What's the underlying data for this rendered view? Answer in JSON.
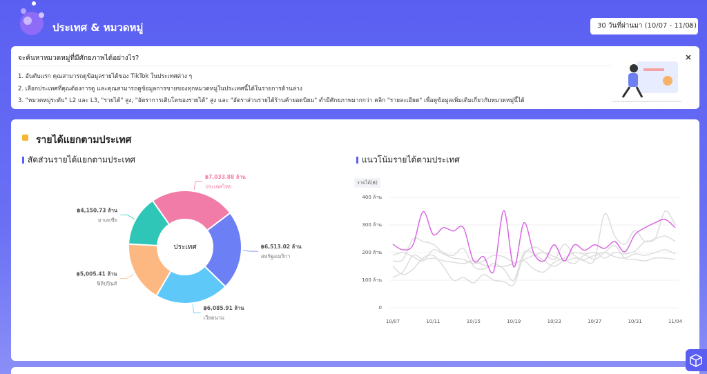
{
  "header": {
    "title": "ประเทศ & หมวดหมู่",
    "date_range": "30 วันที่ผ่านมา (10/07 - 11/05)"
  },
  "guide": {
    "question": "จะค้นหาหมวดหมู่ที่มีศักยภาพได้อย่างไร?",
    "steps": [
      "1. อันดับแรก คุณสามารถดูข้อมูลรายได้ของ TikTok ในประเทศต่าง ๆ",
      "2. เลือกประเทศที่คุณต้องการดู และคุณสามารถดูข้อมูลการขายของทุกหมวดหมู่ในประเทศนี้ได้ในรายการด้านล่าง",
      "3. \"หมวดหมู่ระดับ\" L2 และ L3, \"รายได้\" สูง, \"อัตราการเติบโตของรายได้\" สูง และ \"อัตราส่วนรายได้ร้านค้ายอดนิยม\" ต่ำมีศักยภาพมากกว่า คลิก \"รายละเอียด\" เพื่อดูข้อมูลเพิ่มเติมเกี่ยวกับหมวดหมู่นี้ได้"
    ]
  },
  "section": {
    "title": "รายได้แยกตามประเทศ"
  },
  "chart_data": [
    {
      "type": "pie",
      "title": "สัดส่วนรายได้แยกตามประเทศ",
      "center_label": "ประเทศ",
      "categories": [
        "ประเทศไทย",
        "สหรัฐอเมริกา",
        "เวียดนาม",
        "ฟิลิปปินส์",
        "มาเลเซีย"
      ],
      "values": [
        7033.88,
        6513.02,
        6085.91,
        5005.41,
        4150.73
      ],
      "value_labels": [
        "฿7,033.88 ล้าน",
        "฿6,513.02 ล้าน",
        "฿6,085.91 ล้าน",
        "฿5,005.41 ล้าน",
        "฿4,150.73 ล้าน"
      ],
      "colors": [
        "#f17ca8",
        "#6c7ff4",
        "#5ec8f8",
        "#fdb882",
        "#2fc6b8"
      ]
    },
    {
      "type": "line",
      "title": "แนวโน้มรายได้ตามประเทศ",
      "y_label": "รายได้(฿)",
      "x": [
        "10/07",
        null,
        null,
        null,
        "10/11",
        null,
        null,
        null,
        "10/15",
        null,
        null,
        null,
        "10/19",
        null,
        null,
        null,
        "10/23",
        null,
        null,
        null,
        "10/27",
        null,
        null,
        null,
        "10/31",
        null,
        null,
        null,
        "11/04"
      ],
      "ylim": [
        0,
        400
      ],
      "yticks": [
        0,
        {
          "value": 100,
          "label": "100 ล้าน"
        },
        {
          "value": 200,
          "label": "200 ล้าน"
        },
        {
          "value": 300,
          "label": "300 ล้าน"
        },
        {
          "value": 400,
          "label": "400 ล้าน"
        }
      ],
      "grid": true,
      "series": [
        {
          "color": "#dddddd",
          "values": [
            190,
            200,
            185,
            170,
            210,
            195,
            180,
            175,
            160,
            170,
            190,
            185,
            165,
            175,
            190,
            200,
            185,
            170,
            180,
            175,
            190,
            200,
            185,
            180,
            195,
            190,
            200,
            210,
            195
          ]
        },
        {
          "color": "#dddddd",
          "values": [
            170,
            175,
            250,
            240,
            230,
            200,
            190,
            215,
            150,
            140,
            160,
            140,
            100,
            200,
            195,
            170,
            150,
            170,
            160,
            190,
            175,
            200,
            225,
            180,
            175,
            170,
            180,
            180,
            175
          ]
        },
        {
          "color": "#dddddd",
          "values": [
            150,
            120,
            140,
            180,
            190,
            150,
            100,
            110,
            90,
            120,
            100,
            95,
            85,
            190,
            220,
            200,
            175,
            230,
            190,
            170,
            175,
            340,
            260,
            230,
            280,
            240,
            250,
            260,
            240
          ]
        },
        {
          "color": "#dddddd",
          "values": [
            110,
            130,
            190,
            175,
            180,
            170,
            165,
            160,
            170,
            155,
            150,
            150,
            160,
            170,
            140,
            130,
            165,
            180,
            200,
            195,
            200,
            180,
            200,
            195,
            205,
            240,
            250,
            350,
            300
          ]
        },
        {
          "color": "#d866e4",
          "values": [
            230,
            210,
            228,
            348,
            265,
            290,
            278,
            290,
            170,
            185,
            132,
            352,
            148,
            308,
            195,
            170,
            228,
            170,
            228,
            208,
            228,
            215,
            240,
            203,
            265,
            290,
            308,
            320,
            290
          ]
        }
      ]
    }
  ]
}
